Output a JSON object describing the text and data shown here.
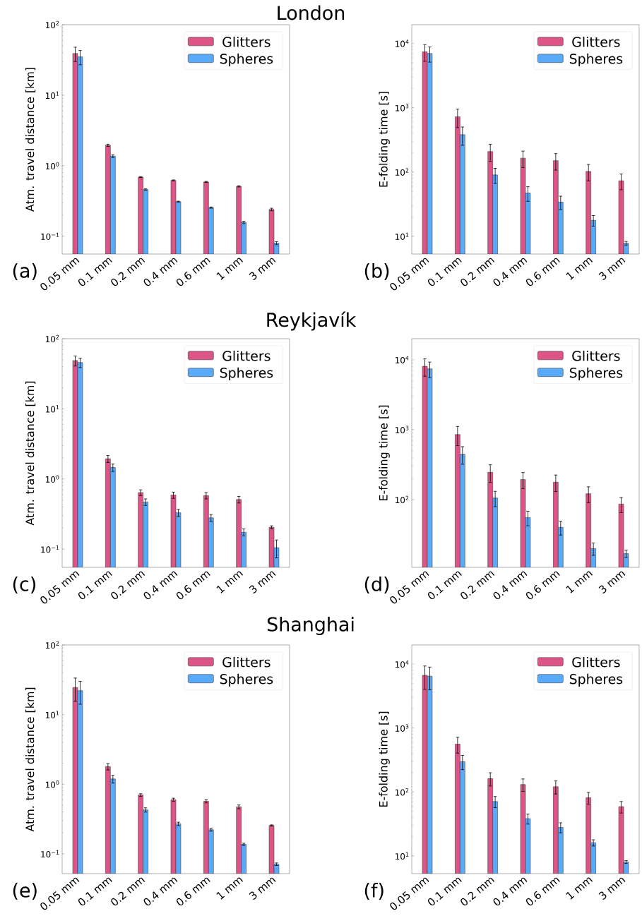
{
  "chart_data": [
    {
      "type": "bar",
      "title": "London",
      "annotations": [
        "(a)"
      ],
      "ylabel": "Atm. travel distance [km]",
      "log": "y",
      "legend": "top right",
      "categories": [
        "0.05 mm",
        "0.1 mm",
        "0.2 mm",
        "0.4 mm",
        "0.6 mm",
        "1 mm",
        "3 mm"
      ],
      "ylim": [
        0.056,
        100
      ],
      "yticks": [
        {
          "value": 0.1,
          "label": "10$^{−1}$"
        },
        {
          "value": 1,
          "label": "10$^{0}$"
        },
        {
          "value": 10,
          "label": "10$^{1}$"
        },
        {
          "value": 100,
          "label": "10$^{2}$"
        }
      ],
      "series": [
        {
          "name": "Glitters",
          "color": "#dd5587",
          "values": [
            39,
            1.95,
            0.69,
            0.62,
            0.59,
            0.51,
            0.24
          ],
          "errors": [
            9,
            0.07,
            0.01,
            0.01,
            0.01,
            0.01,
            0.01
          ]
        },
        {
          "name": "Spheres",
          "color": "#5aaafa",
          "values": [
            35,
            1.37,
            0.46,
            0.31,
            0.255,
            0.157,
            0.08
          ],
          "errors": [
            8,
            0.06,
            0.01,
            0.005,
            0.005,
            0.006,
            0.004
          ]
        }
      ]
    },
    {
      "type": "bar",
      "annotations": [
        "(b)"
      ],
      "ylabel": "E-folding time [s]",
      "log": "y",
      "legend": "top right",
      "categories": [
        "0.05 mm",
        "0.1 mm",
        "0.2 mm",
        "0.4 mm",
        "0.6 mm",
        "1 mm",
        "3 mm"
      ],
      "ylim": [
        5.3,
        19500
      ],
      "yticks": [
        {
          "value": 10,
          "label": "10$^{1}$"
        },
        {
          "value": 100,
          "label": "10$^{2}$"
        },
        {
          "value": 1000,
          "label": "10$^{3}$"
        },
        {
          "value": 10000,
          "label": "10$^{4}$"
        }
      ],
      "series": [
        {
          "name": "Glitters",
          "color": "#dd5587",
          "values": [
            7400,
            720,
            208,
            164,
            150,
            102,
            73
          ],
          "errors": [
            2150,
            230,
            62,
            47,
            43,
            29,
            20
          ]
        },
        {
          "name": "Spheres",
          "color": "#5aaafa",
          "values": [
            6950,
            380,
            90,
            47,
            34,
            17.7,
            7.8
          ],
          "errors": [
            1850,
            120,
            24,
            12,
            8,
            3.3,
            0.5
          ]
        }
      ]
    },
    {
      "type": "bar",
      "title": "Reykjavík",
      "annotations": [
        "(c)"
      ],
      "ylabel": "Atm. travel distance [km]",
      "log": "y",
      "legend": "top right",
      "categories": [
        "0.05 mm",
        "0.1 mm",
        "0.2 mm",
        "0.4 mm",
        "0.6 mm",
        "1 mm",
        "3 mm"
      ],
      "ylim": [
        0.055,
        100
      ],
      "yticks": [
        {
          "value": 0.1,
          "label": "10$^{−1}$"
        },
        {
          "value": 1,
          "label": "10$^{0}$"
        },
        {
          "value": 10,
          "label": "10$^{1}$"
        },
        {
          "value": 100,
          "label": "10$^{2}$"
        }
      ],
      "series": [
        {
          "name": "Glitters",
          "color": "#dd5587",
          "values": [
            48.8,
            1.94,
            0.64,
            0.59,
            0.58,
            0.51,
            0.205
          ],
          "errors": [
            8,
            0.22,
            0.06,
            0.06,
            0.06,
            0.055,
            0.01
          ]
        },
        {
          "name": "Spheres",
          "color": "#5aaafa",
          "values": [
            45.8,
            1.46,
            0.47,
            0.33,
            0.28,
            0.174,
            0.105
          ],
          "errors": [
            7,
            0.18,
            0.05,
            0.038,
            0.032,
            0.02,
            0.03
          ]
        }
      ]
    },
    {
      "type": "bar",
      "annotations": [
        "(d)"
      ],
      "ylabel": "E-folding time [s]",
      "log": "y",
      "legend": "top right",
      "categories": [
        "0.05 mm",
        "0.1 mm",
        "0.2 mm",
        "0.4 mm",
        "0.6 mm",
        "1 mm",
        "3 mm"
      ],
      "ylim": [
        10.7,
        20000
      ],
      "yticks": [
        {
          "value": 100,
          "label": "10$^{2}$"
        },
        {
          "value": 1000,
          "label": "10$^{3}$"
        },
        {
          "value": 10000,
          "label": "10$^{4}$"
        }
      ],
      "series": [
        {
          "name": "Glitters",
          "color": "#dd5587",
          "values": [
            8050,
            850,
            245,
            193,
            177,
            121,
            86
          ],
          "errors": [
            2250,
            260,
            69,
            50,
            47,
            31,
            21
          ]
        },
        {
          "name": "Spheres",
          "color": "#5aaafa",
          "values": [
            7400,
            445,
            105,
            55,
            40,
            19.9,
            16.8
          ],
          "errors": [
            1850,
            125,
            26,
            13,
            9,
            4,
            2
          ]
        }
      ]
    },
    {
      "type": "bar",
      "title": "Shanghai",
      "annotations": [
        "(e)"
      ],
      "ylabel": "Atm. travel distance [km]",
      "log": "y",
      "legend": "top right",
      "categories": [
        "0.05 mm",
        "0.1 mm",
        "0.2 mm",
        "0.4 mm",
        "0.6 mm",
        "1 mm",
        "3 mm"
      ],
      "ylim": [
        0.052,
        100
      ],
      "yticks": [
        {
          "value": 0.1,
          "label": "10$^{−1}$"
        },
        {
          "value": 1,
          "label": "10$^{0}$"
        },
        {
          "value": 10,
          "label": "10$^{1}$"
        },
        {
          "value": 100,
          "label": "10$^{2}$"
        }
      ],
      "series": [
        {
          "name": "Glitters",
          "color": "#dd5587",
          "values": [
            24.5,
            1.79,
            0.7,
            0.6,
            0.57,
            0.473,
            0.256
          ],
          "errors": [
            9,
            0.19,
            0.03,
            0.03,
            0.03,
            0.03,
            0.005
          ]
        },
        {
          "name": "Spheres",
          "color": "#5aaafa",
          "values": [
            22.1,
            1.19,
            0.428,
            0.27,
            0.222,
            0.137,
            0.071
          ],
          "errors": [
            8,
            0.15,
            0.03,
            0.015,
            0.01,
            0.005,
            0.003
          ]
        }
      ]
    },
    {
      "type": "bar",
      "annotations": [
        "(f)"
      ],
      "ylabel": "E-folding time [s]",
      "log": "y",
      "legend": "top right",
      "categories": [
        "0.05 mm",
        "0.1 mm",
        "0.2 mm",
        "0.4 mm",
        "0.6 mm",
        "1 mm",
        "3 mm"
      ],
      "ylim": [
        5.3,
        19900
      ],
      "yticks": [
        {
          "value": 10,
          "label": "10$^{1}$"
        },
        {
          "value": 100,
          "label": "10$^{2}$"
        },
        {
          "value": 1000,
          "label": "10$^{3}$"
        },
        {
          "value": 10000,
          "label": "10$^{4}$"
        }
      ],
      "series": [
        {
          "name": "Glitters",
          "color": "#dd5587",
          "values": [
            6680,
            560,
            162,
            131,
            121,
            81.5,
            59
          ],
          "errors": [
            2650,
            155,
            38,
            29,
            28,
            17,
            12
          ]
        },
        {
          "name": "Spheres",
          "color": "#5aaafa",
          "values": [
            6470,
            299,
            71,
            38.3,
            28,
            16.1,
            8.05
          ],
          "errors": [
            2500,
            75,
            14,
            6.8,
            5,
            1.8,
            0.4
          ]
        }
      ]
    }
  ]
}
